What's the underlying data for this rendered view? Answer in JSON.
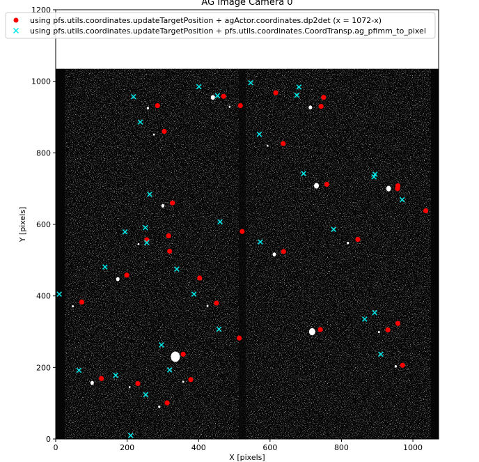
{
  "chart_data": {
    "type": "scatter",
    "title": "AG Image Camera 0",
    "xlabel": "X [pixels]",
    "ylabel": "Y [pixels]",
    "xlim": [
      0,
      1072
    ],
    "ylim": [
      0,
      1200
    ],
    "image_extent_y": [
      0,
      1035
    ],
    "xticks": [
      0,
      200,
      400,
      600,
      800,
      1000
    ],
    "yticks": [
      0,
      200,
      400,
      600,
      800,
      1000,
      1200
    ],
    "grid": false,
    "legend_position": "top",
    "series": [
      {
        "name": "using pfs.utils.coordinates.updateTargetPosition + agActor.coordinates.dp2det (x = 1072-x)",
        "marker": "circle",
        "color": "#ff0000",
        "x": [
          285,
          304,
          327,
          316,
          319,
          255,
          199,
          73,
          128,
          230,
          312,
          357,
          378,
          403,
          450,
          470,
          517,
          522,
          514,
          616,
          637,
          638,
          741,
          743,
          750,
          759,
          846,
          930,
          958,
          957,
          958,
          971,
          1036
        ],
        "y": [
          932,
          860,
          660,
          568,
          525,
          557,
          458,
          383,
          169,
          155,
          101,
          237,
          166,
          450,
          380,
          958,
          932,
          580,
          282,
          968,
          826,
          524,
          306,
          930,
          955,
          712,
          558,
          305,
          323,
          700,
          708,
          206,
          638
        ]
      },
      {
        "name": "using pfs.utils.coordinates.updateTargetPosition  + pfs.utils.coordinates.CoordTransp.ag_pfimm_to_pixel",
        "marker": "x",
        "color": "#00e5e5",
        "x": [
          218,
          237,
          263,
          251,
          255,
          194,
          138,
          10,
          65,
          168,
          210,
          252,
          296,
          319,
          339,
          387,
          401,
          453,
          457,
          460,
          546,
          570,
          573,
          675,
          681,
          694,
          778,
          865,
          891,
          894,
          893,
          910,
          970
        ],
        "y": [
          957,
          886,
          684,
          591,
          549,
          579,
          481,
          405,
          192,
          178,
          10,
          124,
          263,
          193,
          475,
          405,
          985,
          960,
          307,
          607,
          996,
          852,
          551,
          961,
          984,
          742,
          586,
          335,
          733,
          740,
          353,
          237,
          669
        ]
      }
    ]
  }
}
